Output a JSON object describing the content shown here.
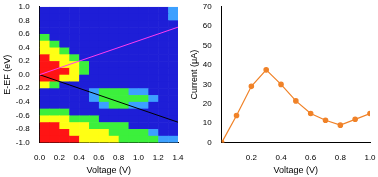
{
  "chart_data": [
    {
      "type": "heatmap",
      "x_label": "Voltage (V)",
      "y_label": "E-EF (eV)",
      "x": [
        0.05,
        0.15,
        0.25,
        0.35,
        0.45,
        0.55,
        0.65,
        0.75,
        0.85,
        0.95,
        1.05,
        1.15,
        1.25,
        1.35
      ],
      "y": [
        0.95,
        0.85,
        0.75,
        0.65,
        0.55,
        0.45,
        0.35,
        0.25,
        0.15,
        0.05,
        -0.05,
        -0.15,
        -0.25,
        -0.35,
        -0.45,
        -0.55,
        -0.65,
        -0.75,
        -0.85,
        -0.95
      ],
      "cells": [
        [
          0,
          0,
          0,
          0,
          0,
          0,
          0,
          0,
          0,
          0,
          0,
          0,
          0,
          1
        ],
        [
          0,
          0,
          0,
          0,
          0,
          0,
          0,
          0,
          0,
          0,
          0,
          0,
          0,
          1
        ],
        [
          0,
          0,
          0,
          0,
          0,
          0,
          0,
          0,
          0,
          0,
          0,
          0,
          0,
          0
        ],
        [
          0,
          0,
          0,
          0,
          0,
          0,
          0,
          0,
          0,
          0,
          0,
          0,
          0,
          0
        ],
        [
          2,
          0,
          0,
          0,
          0,
          0,
          0,
          0,
          0,
          0,
          0,
          0,
          0,
          0
        ],
        [
          3,
          2,
          0,
          0,
          0,
          0,
          0,
          0,
          0,
          0,
          0,
          0,
          0,
          0
        ],
        [
          3,
          3,
          2,
          0,
          0,
          0,
          0,
          0,
          0,
          0,
          0,
          0,
          0,
          0
        ],
        [
          4,
          3,
          3,
          2,
          0,
          0,
          0,
          0,
          0,
          0,
          0,
          0,
          0,
          0
        ],
        [
          4,
          4,
          3,
          3,
          2,
          0,
          0,
          0,
          0,
          0,
          0,
          0,
          0,
          0
        ],
        [
          4,
          4,
          4,
          3,
          2,
          0,
          0,
          0,
          0,
          0,
          0,
          0,
          0,
          0
        ],
        [
          4,
          4,
          3,
          3,
          0,
          0,
          0,
          0,
          0,
          0,
          0,
          0,
          0,
          0
        ],
        [
          3,
          2,
          0,
          0,
          0,
          0,
          0,
          0,
          0,
          0,
          0,
          0,
          0,
          0
        ],
        [
          0,
          0,
          0,
          0,
          0,
          1,
          2,
          2,
          2,
          1,
          1,
          0,
          0,
          0
        ],
        [
          0,
          0,
          0,
          0,
          0,
          1,
          2,
          2,
          2,
          2,
          2,
          1,
          0,
          0
        ],
        [
          0,
          0,
          0,
          0,
          0,
          0,
          1,
          2,
          2,
          1,
          1,
          0,
          0,
          0
        ],
        [
          2,
          2,
          2,
          0,
          0,
          0,
          0,
          0,
          0,
          0,
          0,
          0,
          0,
          0
        ],
        [
          3,
          3,
          3,
          2,
          2,
          2,
          0,
          0,
          0,
          0,
          0,
          0,
          0,
          0
        ],
        [
          4,
          4,
          3,
          3,
          3,
          2,
          2,
          2,
          2,
          0,
          0,
          0,
          0,
          0
        ],
        [
          4,
          4,
          4,
          3,
          3,
          3,
          3,
          2,
          2,
          2,
          2,
          1,
          0,
          0
        ],
        [
          4,
          4,
          4,
          4,
          3,
          3,
          3,
          3,
          2,
          2,
          2,
          2,
          1,
          1
        ]
      ],
      "xlim": [
        0,
        1.4
      ],
      "ylim": [
        -1,
        1
      ],
      "xticks": [
        {
          "value": 0,
          "label": "0.0"
        },
        0.2,
        0.4,
        0.6,
        0.8,
        {
          "value": 1,
          "label": "1.0"
        },
        1.2,
        1.4
      ],
      "yticks": [
        {
          "value": -1,
          "label": "-1.0"
        },
        -0.8,
        -0.6,
        -0.4,
        -0.2,
        {
          "value": 0,
          "label": "0.0"
        },
        0.2,
        0.4,
        0.6,
        0.8,
        {
          "value": 1,
          "label": "1.0"
        }
      ],
      "series": [
        {
          "type": "line",
          "color": "#ff3cf0",
          "x": [
            0,
            1.4
          ],
          "values": [
            0,
            0.7
          ]
        },
        {
          "type": "line",
          "color": "#000000",
          "x": [
            0,
            1.4
          ],
          "values": [
            0,
            -0.7
          ]
        }
      ]
    },
    {
      "type": "line",
      "x_label": "Voltage (V)",
      "y_label": "Current (μA)",
      "x": [
        0,
        0.1,
        0.2,
        0.3,
        0.4,
        0.5,
        0.6,
        0.7,
        0.8,
        0.9,
        1.0
      ],
      "values": [
        0,
        14,
        29,
        37.5,
        30,
        21.5,
        15,
        11.5,
        9,
        12,
        15
      ],
      "color": "#f08228",
      "marker": "circle",
      "xlim": [
        0,
        1
      ],
      "ylim": [
        0,
        70
      ],
      "xticks": [
        0.2,
        0.4,
        0.6,
        0.8,
        {
          "value": 1,
          "label": "1.0"
        }
      ],
      "yticks": [
        0,
        10,
        20,
        30,
        40,
        50,
        60,
        70
      ]
    }
  ]
}
